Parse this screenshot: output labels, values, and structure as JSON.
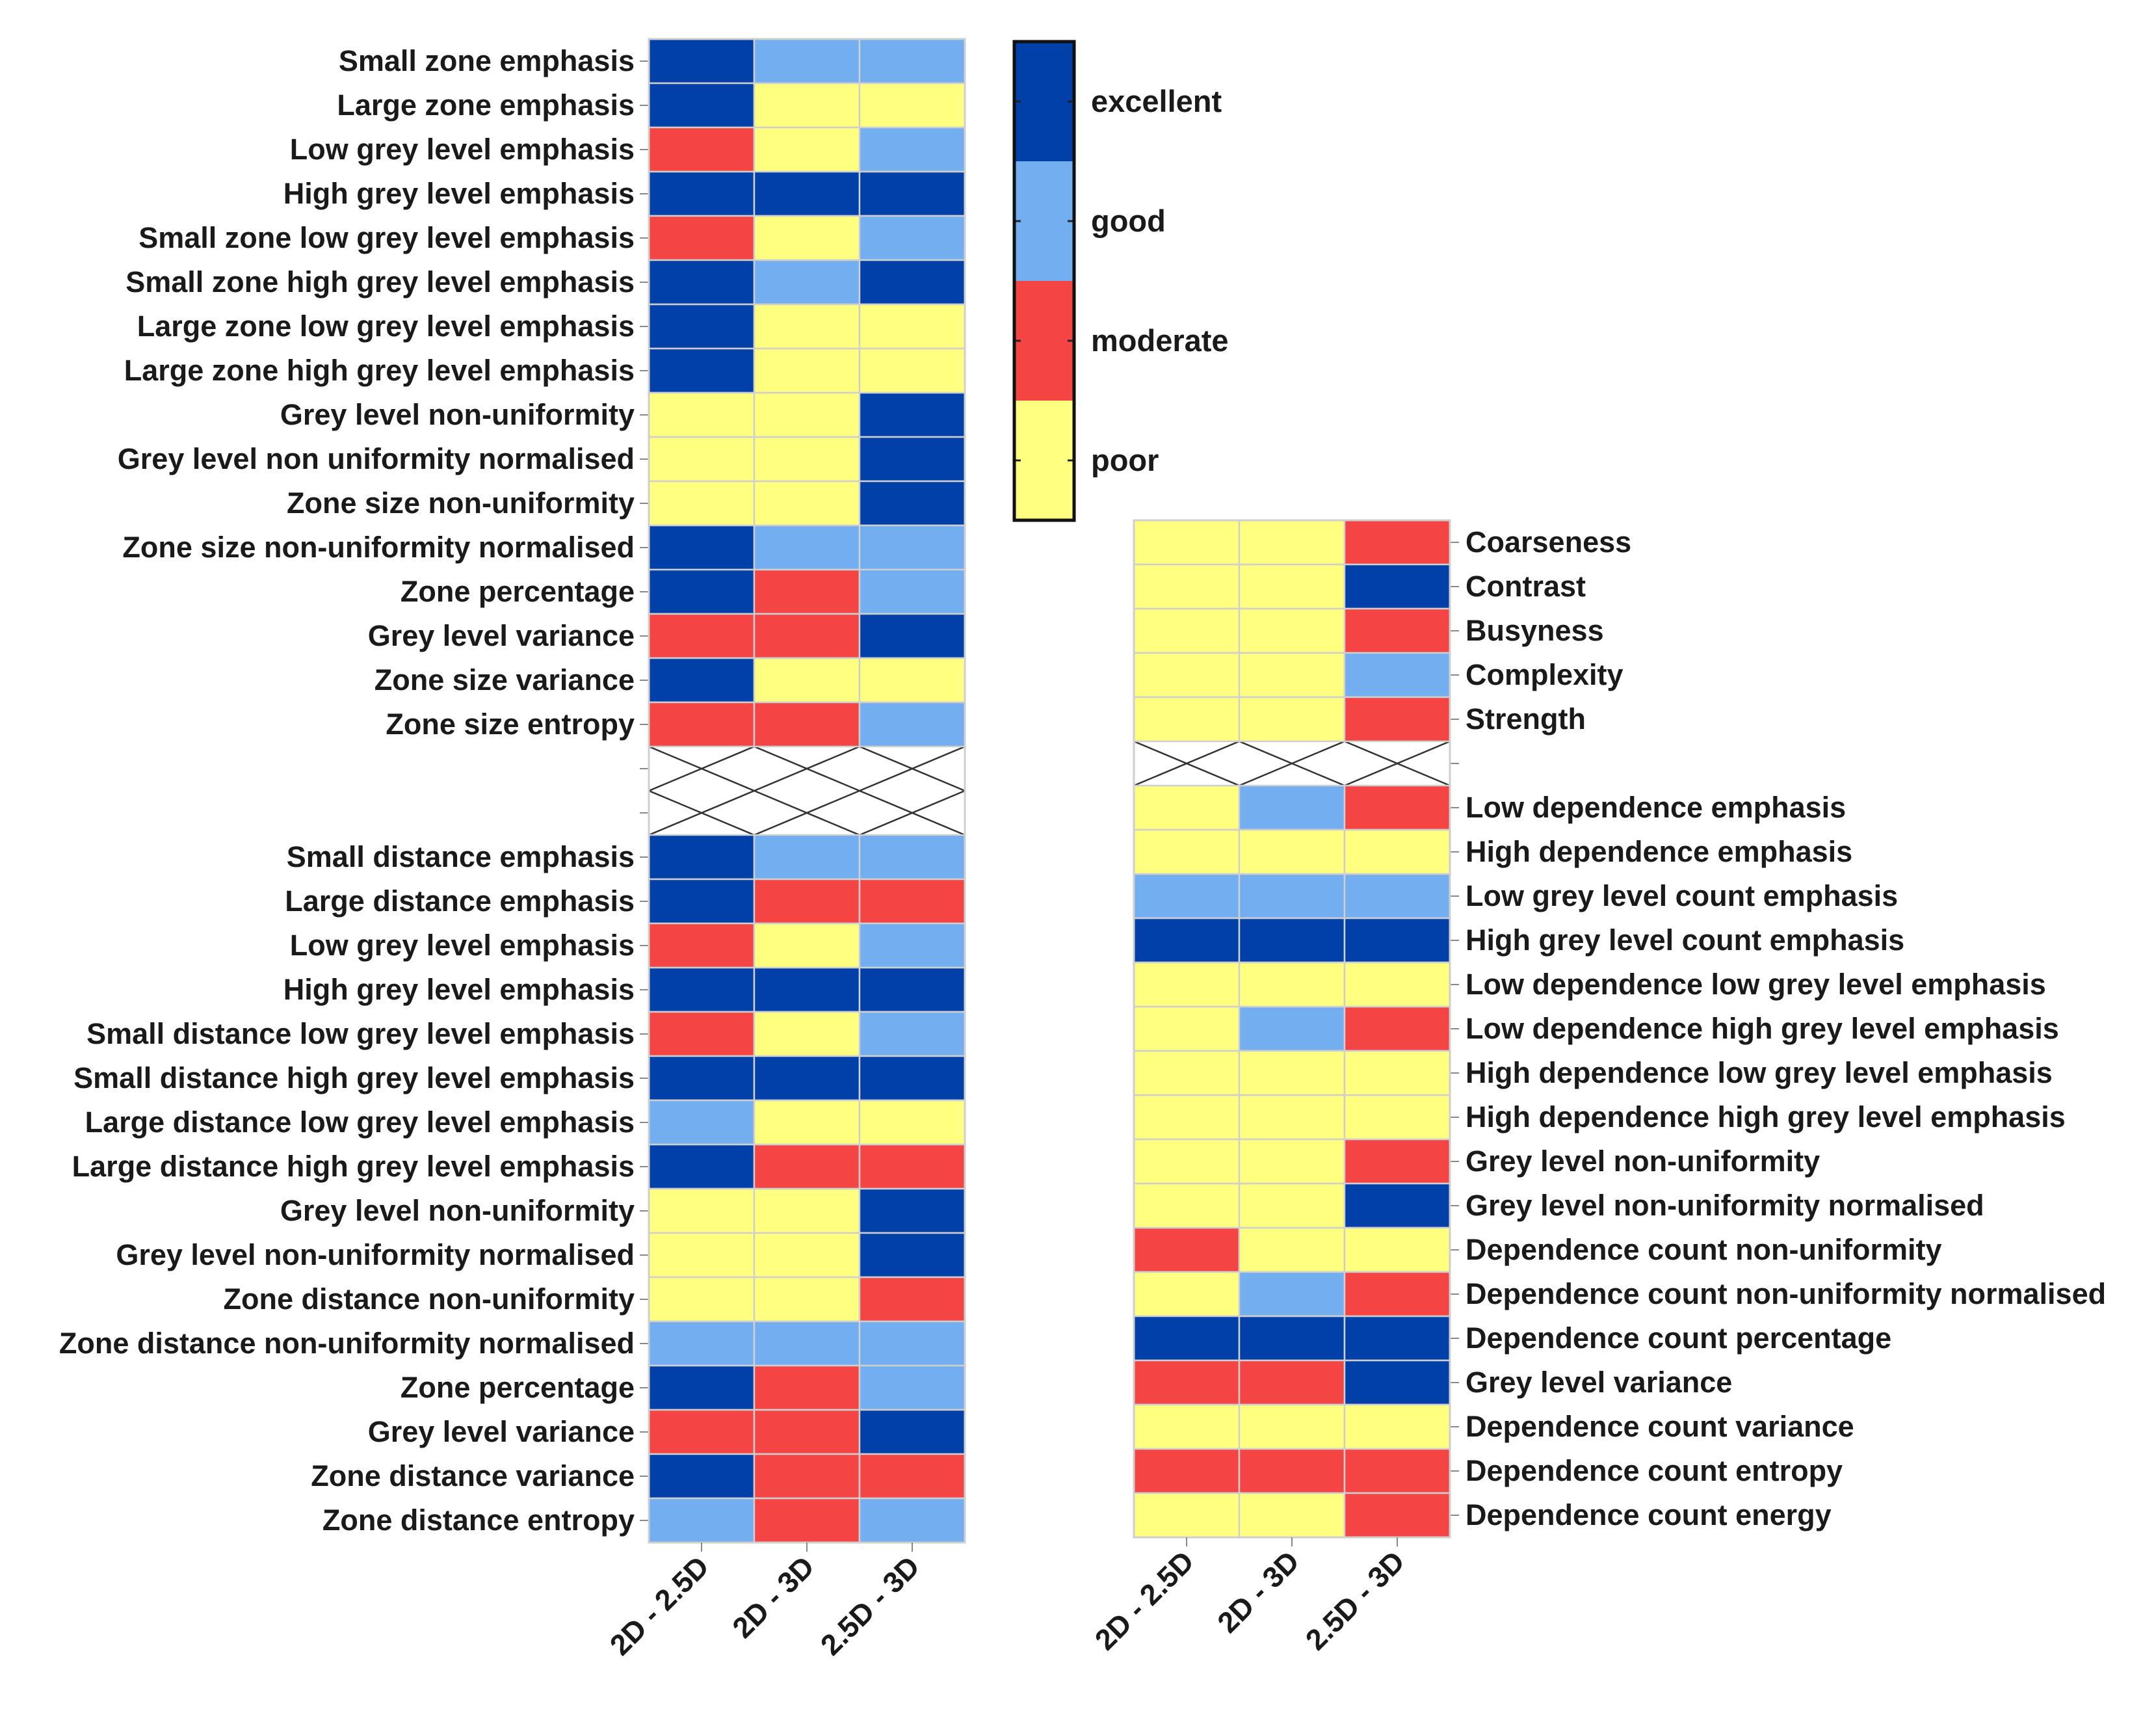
{
  "legend": {
    "levels": [
      {
        "label": "excellent",
        "color": "#0040A8"
      },
      {
        "label": "good",
        "color": "#73AEF0"
      },
      {
        "label": "moderate",
        "color": "#F44444"
      },
      {
        "label": "poor",
        "color": "#FFFF80"
      }
    ]
  },
  "chart_data": [
    {
      "type": "heatmap",
      "columns": [
        "2D - 2.5D",
        "2D - 3D",
        "2.5D - 3D"
      ],
      "groups": [
        {
          "rows": [
            {
              "label": "Small zone emphasis",
              "values": [
                "excellent",
                "good",
                "good"
              ]
            },
            {
              "label": "Large zone emphasis",
              "values": [
                "excellent",
                "poor",
                "poor"
              ]
            },
            {
              "label": "Low grey level emphasis",
              "values": [
                "moderate",
                "poor",
                "good"
              ]
            },
            {
              "label": "High grey level emphasis",
              "values": [
                "excellent",
                "excellent",
                "excellent"
              ]
            },
            {
              "label": "Small zone low grey level emphasis",
              "values": [
                "moderate",
                "poor",
                "good"
              ]
            },
            {
              "label": "Small zone high grey level emphasis",
              "values": [
                "excellent",
                "good",
                "excellent"
              ]
            },
            {
              "label": "Large zone low grey level emphasis",
              "values": [
                "excellent",
                "poor",
                "poor"
              ]
            },
            {
              "label": "Large zone high grey level emphasis",
              "values": [
                "excellent",
                "poor",
                "poor"
              ]
            },
            {
              "label": "Grey level non-uniformity",
              "values": [
                "poor",
                "poor",
                "excellent"
              ]
            },
            {
              "label": "Grey level non uniformity normalised",
              "values": [
                "poor",
                "poor",
                "excellent"
              ]
            },
            {
              "label": "Zone size non-uniformity",
              "values": [
                "poor",
                "poor",
                "excellent"
              ]
            },
            {
              "label": "Zone size non-uniformity normalised",
              "values": [
                "excellent",
                "good",
                "good"
              ]
            },
            {
              "label": "Zone percentage",
              "values": [
                "excellent",
                "moderate",
                "good"
              ]
            },
            {
              "label": "Grey level variance",
              "values": [
                "moderate",
                "moderate",
                "excellent"
              ]
            },
            {
              "label": "Zone size variance",
              "values": [
                "excellent",
                "poor",
                "poor"
              ]
            },
            {
              "label": "Zone size entropy",
              "values": [
                "moderate",
                "moderate",
                "good"
              ]
            }
          ]
        },
        {
          "rows": [
            {
              "label": "Small distance emphasis",
              "values": [
                "excellent",
                "good",
                "good"
              ]
            },
            {
              "label": "Large distance emphasis",
              "values": [
                "excellent",
                "moderate",
                "moderate"
              ]
            },
            {
              "label": "Low grey level emphasis",
              "values": [
                "moderate",
                "poor",
                "good"
              ]
            },
            {
              "label": "High grey level emphasis",
              "values": [
                "excellent",
                "excellent",
                "excellent"
              ]
            },
            {
              "label": "Small distance low grey level emphasis",
              "values": [
                "moderate",
                "poor",
                "good"
              ]
            },
            {
              "label": "Small distance high grey level emphasis",
              "values": [
                "excellent",
                "excellent",
                "excellent"
              ]
            },
            {
              "label": "Large distance low grey level emphasis",
              "values": [
                "good",
                "poor",
                "poor"
              ]
            },
            {
              "label": "Large distance high grey level emphasis",
              "values": [
                "excellent",
                "moderate",
                "moderate"
              ]
            },
            {
              "label": "Grey level non-uniformity",
              "values": [
                "poor",
                "poor",
                "excellent"
              ]
            },
            {
              "label": "Grey level non-uniformity normalised",
              "values": [
                "poor",
                "poor",
                "excellent"
              ]
            },
            {
              "label": "Zone distance non-uniformity",
              "values": [
                "poor",
                "poor",
                "moderate"
              ]
            },
            {
              "label": "Zone distance non-uniformity normalised",
              "values": [
                "good",
                "good",
                "good"
              ]
            },
            {
              "label": "Zone percentage",
              "values": [
                "excellent",
                "moderate",
                "good"
              ]
            },
            {
              "label": "Grey level variance",
              "values": [
                "moderate",
                "moderate",
                "excellent"
              ]
            },
            {
              "label": "Zone distance variance",
              "values": [
                "excellent",
                "moderate",
                "moderate"
              ]
            },
            {
              "label": "Zone distance entropy",
              "values": [
                "good",
                "moderate",
                "good"
              ]
            }
          ]
        }
      ]
    },
    {
      "type": "heatmap",
      "columns": [
        "2D - 2.5D",
        "2D - 3D",
        "2.5D - 3D"
      ],
      "groups": [
        {
          "rows": [
            {
              "label": "Coarseness",
              "values": [
                "poor",
                "poor",
                "moderate"
              ]
            },
            {
              "label": "Contrast",
              "values": [
                "poor",
                "poor",
                "excellent"
              ]
            },
            {
              "label": "Busyness",
              "values": [
                "poor",
                "poor",
                "moderate"
              ]
            },
            {
              "label": "Complexity",
              "values": [
                "poor",
                "poor",
                "good"
              ]
            },
            {
              "label": "Strength",
              "values": [
                "poor",
                "poor",
                "moderate"
              ]
            }
          ]
        },
        {
          "rows": [
            {
              "label": "Low dependence emphasis",
              "values": [
                "poor",
                "good",
                "moderate"
              ]
            },
            {
              "label": "High dependence emphasis",
              "values": [
                "poor",
                "poor",
                "poor"
              ]
            },
            {
              "label": "Low grey level count emphasis",
              "values": [
                "good",
                "good",
                "good"
              ]
            },
            {
              "label": "High grey level count emphasis",
              "values": [
                "excellent",
                "excellent",
                "excellent"
              ]
            },
            {
              "label": "Low dependence low grey level emphasis",
              "values": [
                "poor",
                "poor",
                "poor"
              ]
            },
            {
              "label": "Low dependence high grey level emphasis",
              "values": [
                "poor",
                "good",
                "moderate"
              ]
            },
            {
              "label": "High dependence low grey level emphasis",
              "values": [
                "poor",
                "poor",
                "poor"
              ]
            },
            {
              "label": "High dependence high grey level emphasis",
              "values": [
                "poor",
                "poor",
                "poor"
              ]
            },
            {
              "label": "Grey level non-uniformity",
              "values": [
                "poor",
                "poor",
                "moderate"
              ]
            },
            {
              "label": "Grey level non-uniformity normalised",
              "values": [
                "poor",
                "poor",
                "excellent"
              ]
            },
            {
              "label": "Dependence count non-uniformity",
              "values": [
                "moderate",
                "poor",
                "poor"
              ]
            },
            {
              "label": "Dependence count non-uniformity normalised",
              "values": [
                "poor",
                "good",
                "moderate"
              ]
            },
            {
              "label": "Dependence count percentage",
              "values": [
                "excellent",
                "excellent",
                "excellent"
              ]
            },
            {
              "label": "Grey level variance",
              "values": [
                "moderate",
                "moderate",
                "excellent"
              ]
            },
            {
              "label": "Dependence count variance",
              "values": [
                "poor",
                "poor",
                "poor"
              ]
            },
            {
              "label": "Dependence count entropy",
              "values": [
                "moderate",
                "moderate",
                "moderate"
              ]
            },
            {
              "label": "Dependence count energy",
              "values": [
                "poor",
                "poor",
                "moderate"
              ]
            }
          ]
        }
      ]
    }
  ]
}
